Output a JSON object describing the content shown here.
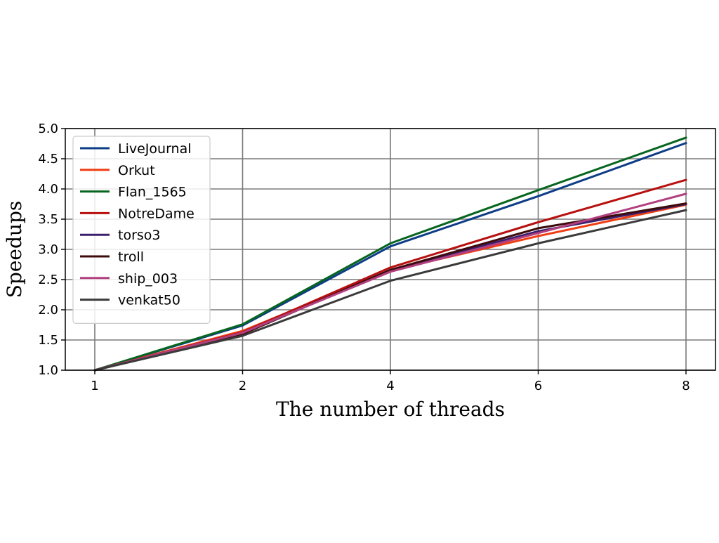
{
  "chart_data": {
    "type": "line",
    "title": "",
    "xlabel": "The number of threads",
    "ylabel": "Speedups",
    "x": [
      1,
      2,
      4,
      6,
      8
    ],
    "x_tick_labels": [
      "1",
      "2",
      "4",
      "6",
      "8"
    ],
    "x_axis_note": "x positions are evenly spaced categories",
    "ylim": [
      1.0,
      5.0
    ],
    "y_ticks": [
      1.0,
      1.5,
      2.0,
      2.5,
      3.0,
      3.5,
      4.0,
      4.5,
      5.0
    ],
    "y_tick_labels": [
      "1.0",
      "1.5",
      "2.0",
      "2.5",
      "3.0",
      "3.5",
      "4.0",
      "4.5",
      "5.0"
    ],
    "grid": true,
    "legend_position": "top-left",
    "series": [
      {
        "name": "LiveJournal",
        "color": "#0d3d87",
        "values": [
          1.0,
          1.74,
          3.05,
          3.88,
          4.76
        ]
      },
      {
        "name": "Orkut",
        "color": "#ef3e12",
        "values": [
          1.0,
          1.65,
          2.65,
          3.22,
          3.74
        ]
      },
      {
        "name": "Flan_1565",
        "color": "#07651f",
        "values": [
          1.0,
          1.76,
          3.1,
          3.98,
          4.85
        ]
      },
      {
        "name": "NotreDame",
        "color": "#b80f0f",
        "values": [
          1.0,
          1.63,
          2.7,
          3.45,
          4.15
        ]
      },
      {
        "name": "torso3",
        "color": "#3b1f6e",
        "values": [
          1.0,
          1.6,
          2.66,
          3.3,
          3.75
        ]
      },
      {
        "name": "troll",
        "color": "#3d0b0b",
        "values": [
          1.0,
          1.6,
          2.66,
          3.35,
          3.76
        ]
      },
      {
        "name": "ship_003",
        "color": "#b2407f",
        "values": [
          1.0,
          1.62,
          2.63,
          3.27,
          3.92
        ]
      },
      {
        "name": "venkat50",
        "color": "#3a3a3a",
        "values": [
          1.0,
          1.57,
          2.48,
          3.1,
          3.65
        ]
      }
    ]
  }
}
